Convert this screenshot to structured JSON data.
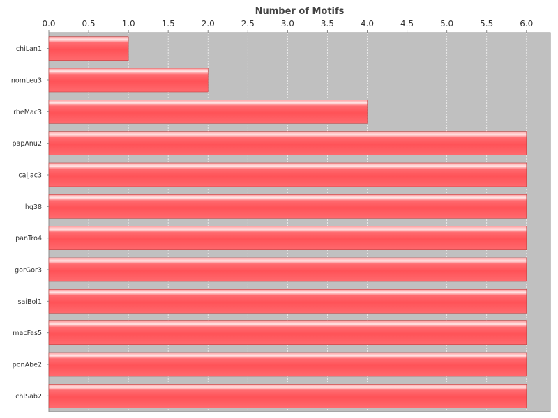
{
  "chart_data": {
    "type": "bar",
    "orientation": "horizontal",
    "title": "Number of Motifs",
    "xlabel": "",
    "ylabel": "",
    "xlim": [
      0,
      6.3
    ],
    "x_ticks": [
      "0.0",
      "0.5",
      "1.0",
      "1.5",
      "2.0",
      "2.5",
      "3.0",
      "3.5",
      "4.0",
      "4.5",
      "5.0",
      "5.5",
      "6.0"
    ],
    "x_axis_position": "top",
    "grid": true,
    "legend": "none",
    "categories": [
      "chiLan1",
      "nomLeu3",
      "rheMac3",
      "papAnu2",
      "calJac3",
      "hg38",
      "panTro4",
      "gorGor3",
      "saiBol1",
      "macFas5",
      "ponAbe2",
      "chlSab2"
    ],
    "values": [
      1,
      2,
      4,
      6,
      6,
      6,
      6,
      6,
      6,
      6,
      6,
      6
    ],
    "colors": {
      "bar": "#ff5a5f",
      "bar_highlight": "#ffe6e6",
      "bar_border": "#c04040",
      "plot_background": "#c0c0c0",
      "grid": "#f2f2f2"
    }
  }
}
